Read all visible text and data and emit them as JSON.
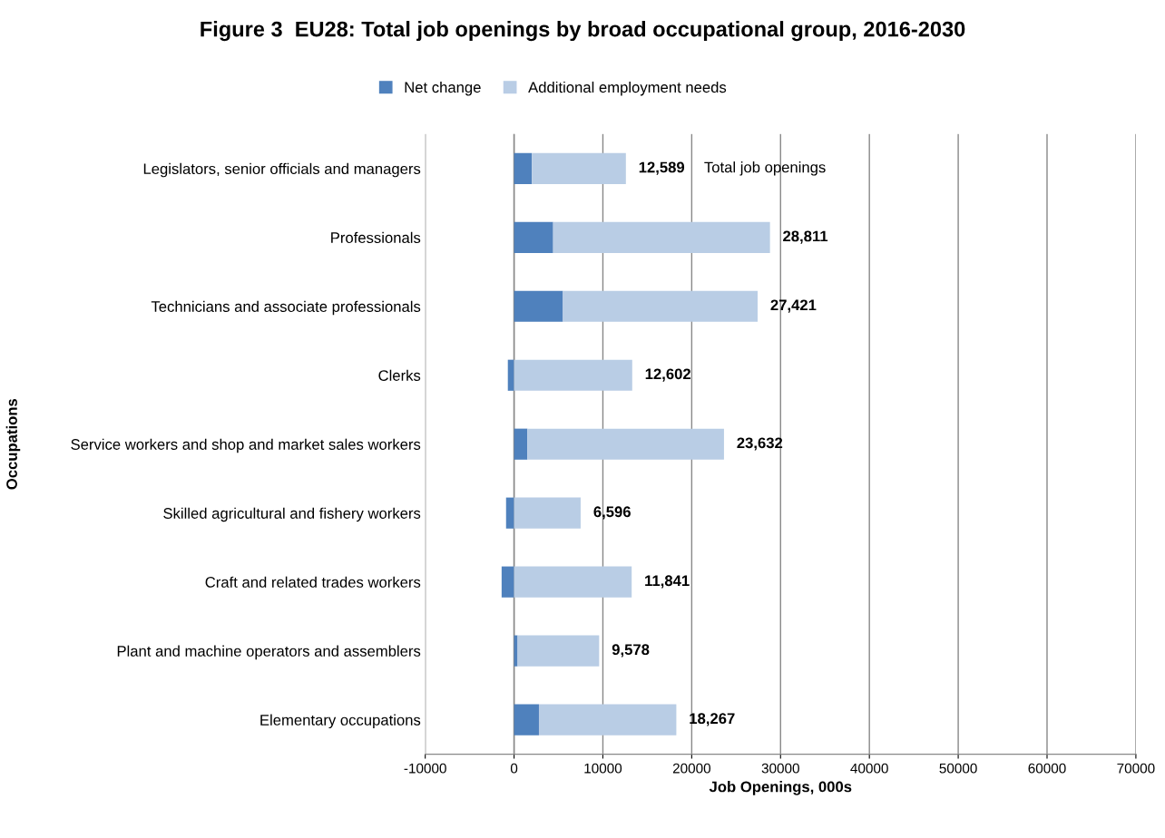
{
  "chart_data": {
    "type": "bar",
    "title": "Figure 3  EU28: Total job openings by broad occupational group, 2016-2030",
    "orientation": "horizontal",
    "stacked": true,
    "categories": [
      "Legislators, senior officials and managers",
      "Professionals",
      "Technicians and associate professionals",
      "Clerks",
      "Service workers and shop and market sales workers",
      "Skilled agricultural and fishery workers",
      "Craft and related trades workers",
      "Plant and machine operators and assemblers",
      "Elementary occupations"
    ],
    "series": [
      {
        "name": "Net change",
        "color": "#4f81bd",
        "values": [
          2000,
          4400,
          5500,
          -700,
          1500,
          -900,
          -1400,
          400,
          2800
        ]
      },
      {
        "name": "Additional employment needs",
        "color": "#b9cde5",
        "values": [
          10589,
          24411,
          21921,
          13302,
          22132,
          7496,
          13241,
          9178,
          15467
        ]
      }
    ],
    "totals": [
      "12,589",
      "28,811",
      "27,421",
      "12,602",
      "23,632",
      "6,596",
      "11,841",
      "9,578",
      "18,267"
    ],
    "annotations": [
      "Total job openings"
    ],
    "xlim": [
      -10000,
      70000
    ],
    "xticks": [
      -10000,
      0,
      10000,
      20000,
      30000,
      40000,
      50000,
      60000,
      70000
    ],
    "xlabel": "Job Openings, 000s",
    "ylabel": "Occupations",
    "grid": "x",
    "legend": "top"
  }
}
